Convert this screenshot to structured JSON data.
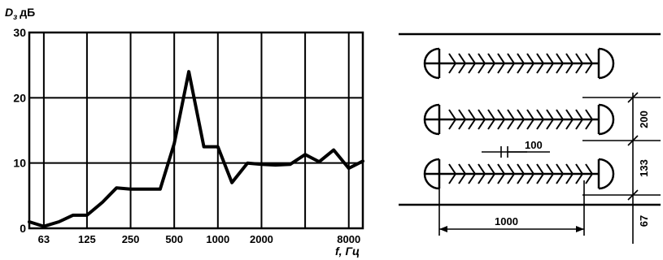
{
  "chart_data": {
    "type": "line",
    "ylabel": "D",
    "ylabel_sub": "з",
    "ylabel_unit": "дБ",
    "xlabel": "f, Гц",
    "x_scale": "log",
    "ylim": [
      0,
      30
    ],
    "y_ticks": [
      0,
      10,
      20,
      30
    ],
    "y_tick_labels": [
      "0",
      "10",
      "20",
      "30"
    ],
    "x_ticks": [
      63,
      125,
      250,
      500,
      1000,
      2000,
      8000
    ],
    "x_tick_labels": [
      "63",
      "125",
      "250",
      "500",
      "1000",
      "2000",
      "8000"
    ],
    "grid": true,
    "series": [
      {
        "x": [
          50,
          63,
          80,
          100,
          125,
          160,
          200,
          250,
          315,
          400,
          500,
          630,
          800,
          1000,
          1250,
          1600,
          2000,
          2500,
          3150,
          4000,
          5000,
          6300,
          8000,
          10000
        ],
        "y": [
          1,
          0.3,
          1,
          2,
          2,
          4,
          6.2,
          6,
          6,
          6,
          13,
          24,
          12.5,
          12.5,
          7,
          10,
          9.8,
          9.7,
          9.8,
          11.3,
          10.2,
          12,
          9.2,
          10.3
        ]
      }
    ]
  },
  "drawing": {
    "dim_labels": {
      "pitch": "100",
      "length": "1000",
      "row_spacing": "200",
      "row_offset": "133",
      "edge_offset": "67"
    }
  },
  "colors": {
    "line": "#000000",
    "background": "#ffffff"
  }
}
